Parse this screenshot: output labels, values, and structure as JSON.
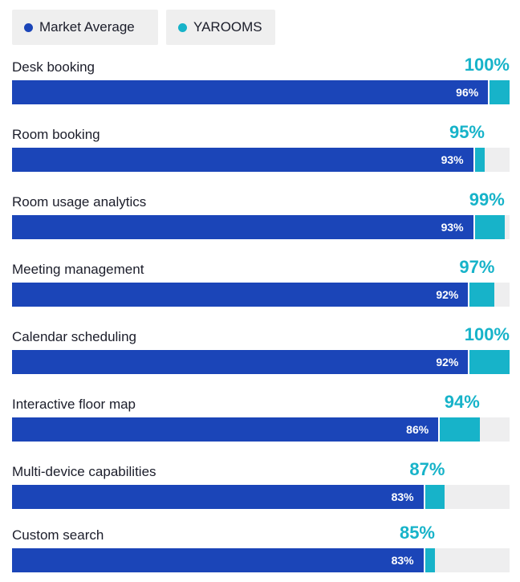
{
  "colors": {
    "market": "#1b45b8",
    "yarooms": "#17b3c9",
    "track": "#eeeeef"
  },
  "legend": [
    {
      "label": "Market Average",
      "color": "#1b45b8"
    },
    {
      "label": "YAROOMS",
      "color": "#17b3c9"
    }
  ],
  "chart_data": {
    "type": "bar",
    "orientation": "horizontal",
    "xlim": [
      0,
      100
    ],
    "legend_position": "top-left",
    "categories": [
      "Desk booking",
      "Room booking",
      "Room usage analytics",
      "Meeting management",
      "Calendar scheduling",
      "Interactive floor map",
      "Multi-device capabilities",
      "Custom search"
    ],
    "series": [
      {
        "name": "Market Average",
        "values": [
          96,
          93,
          93,
          92,
          92,
          86,
          83,
          83
        ],
        "labels": [
          "96%",
          "93%",
          "93%",
          "92%",
          "92%",
          "86%",
          "83%",
          "83%"
        ]
      },
      {
        "name": "YAROOMS",
        "values": [
          100,
          95,
          99,
          97,
          100,
          94,
          87,
          85
        ],
        "labels": [
          "100%",
          "95%",
          "99%",
          "97%",
          "100%",
          "94%",
          "87%",
          "85%"
        ]
      }
    ]
  }
}
